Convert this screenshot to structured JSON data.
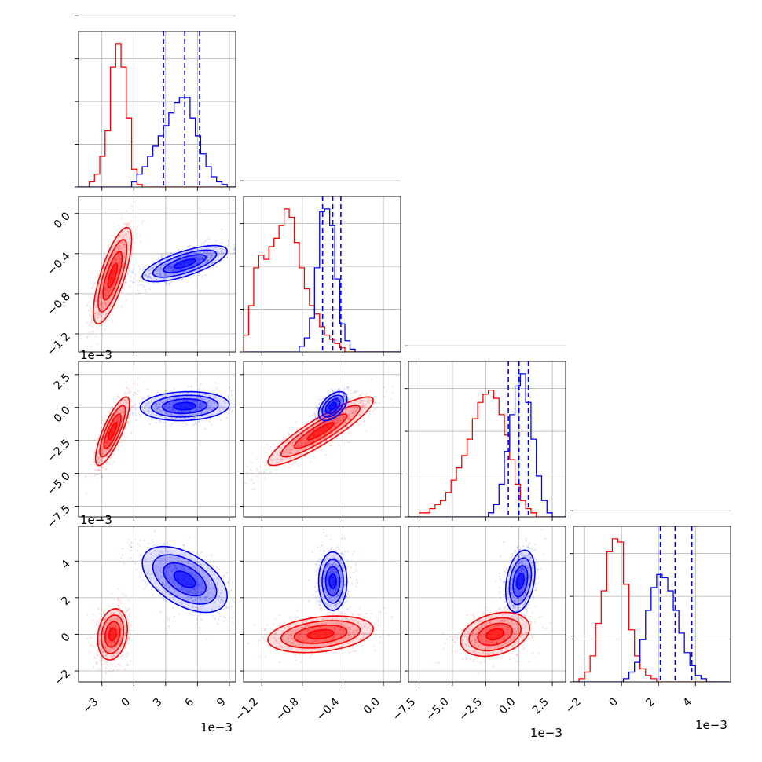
{
  "chart_data": {
    "type": "corner",
    "series_colors": {
      "red": "#ff0000",
      "blue": "#0000ff"
    },
    "grid": true,
    "parameters": [
      {
        "range": [
          -5.2,
          9.6
        ],
        "ticks": [
          -3,
          0,
          3,
          6,
          9
        ],
        "tick_labels": [
          "−3",
          "0",
          "3",
          "6",
          "9"
        ],
        "exponent_label": "1e−3"
      },
      {
        "range": [
          -1.38,
          0.17
        ],
        "ticks": [
          -1.2,
          -0.8,
          -0.4,
          0.0
        ],
        "tick_labels": [
          "−1.2",
          "−0.8",
          "−0.4",
          "0.0"
        ],
        "exponent_label": "1e−3"
      },
      {
        "range": [
          -8.3,
          3.5
        ],
        "ticks": [
          -7.5,
          -5.0,
          -2.5,
          0.0,
          2.5
        ],
        "tick_labels": [
          "−7.5",
          "−5.0",
          "−2.5",
          "0.0",
          "2.5"
        ],
        "exponent_label": "1e−3"
      },
      {
        "range": [
          -2.6,
          5.9
        ],
        "ticks": [
          -2,
          0,
          2,
          4
        ],
        "tick_labels": [
          "−2",
          "0",
          "2",
          "4"
        ],
        "exponent_label": "1e−3"
      }
    ],
    "marginals": [
      {
        "param": 0,
        "red_hist": {
          "start": -5.2,
          "bin_width": 0.5,
          "counts": [
            0,
            0,
            2,
            5,
            12,
            22,
            47,
            56,
            47,
            27,
            7,
            1,
            0,
            0,
            0,
            0,
            0,
            0,
            0,
            0,
            0,
            0,
            0,
            0,
            0,
            0,
            0,
            0,
            0,
            0
          ]
        },
        "blue_hist": {
          "start": -5.2,
          "bin_width": 0.5,
          "counts": [
            0,
            0,
            0,
            0,
            0,
            0,
            0,
            0,
            0,
            0,
            2,
            5,
            8,
            12,
            16,
            20,
            24,
            29,
            33,
            35,
            35,
            27,
            20,
            13,
            8,
            4,
            2,
            1,
            0,
            0
          ]
        },
        "blue_quantiles": [
          2.8,
          4.8,
          6.2
        ]
      },
      {
        "param": 1,
        "red_hist": {
          "start": -1.38,
          "bin_width": 0.05,
          "counts": [
            4,
            11,
            20,
            23,
            22,
            25,
            27,
            30,
            34,
            32,
            26,
            20,
            15,
            11,
            9,
            6,
            4,
            3,
            2,
            1,
            0,
            0,
            0,
            0,
            0,
            0,
            0,
            0,
            0,
            0,
            0,
            0
          ]
        },
        "blue_hist": {
          "start": -1.38,
          "bin_width": 0.05,
          "counts": [
            0,
            0,
            0,
            0,
            0,
            0,
            0,
            0,
            0,
            0,
            0,
            0,
            0,
            0,
            0,
            0,
            0,
            0,
            0,
            0,
            0,
            0,
            0,
            0,
            0,
            0,
            0,
            0,
            0,
            0,
            0,
            0
          ]
        },
        "blue_quantiles": [
          -0.6,
          -0.5,
          -0.42
        ]
      },
      {
        "param": 2,
        "red_hist": {
          "start": -8.3,
          "bin_width": 0.4,
          "counts": [
            0,
            0,
            1,
            1,
            2,
            3,
            4,
            6,
            9,
            12,
            15,
            19,
            24,
            28,
            30,
            31,
            29,
            25,
            20,
            14,
            8,
            4,
            2,
            1,
            0,
            0,
            0,
            0,
            0,
            0
          ]
        },
        "blue_hist": {
          "start": -8.3,
          "bin_width": 0.4,
          "counts": [
            0,
            0,
            0,
            0,
            0,
            0,
            0,
            0,
            0,
            0,
            0,
            0,
            0,
            0,
            0,
            1,
            3,
            8,
            16,
            25,
            32,
            35,
            28,
            19,
            10,
            4,
            1,
            0,
            0,
            0
          ]
        },
        "blue_quantiles": [
          -0.8,
          0.0,
          0.7
        ]
      },
      {
        "param": 3,
        "red_hist": {
          "start": -2.6,
          "bin_width": 0.3,
          "counts": [
            0,
            1,
            3,
            8,
            18,
            28,
            40,
            44,
            43,
            30,
            16,
            8,
            4,
            2,
            1,
            0,
            0,
            0,
            0,
            0,
            0,
            0,
            0,
            0,
            0,
            0,
            0,
            0
          ]
        },
        "blue_hist": {
          "start": -2.6,
          "bin_width": 0.3,
          "counts": [
            0,
            0,
            0,
            0,
            0,
            0,
            0,
            0,
            0,
            1,
            3,
            6,
            13,
            22,
            29,
            33,
            32,
            28,
            22,
            15,
            9,
            5,
            2,
            1,
            0,
            0,
            0,
            0
          ]
        },
        "blue_quantiles": [
          2.1,
          2.9,
          3.8
        ]
      }
    ],
    "joint": [
      {
        "x_param": 0,
        "y_param": 1,
        "red": {
          "mean": [
            -2.0,
            -0.62
          ],
          "sd": [
            0.9,
            0.24
          ],
          "rho": 0.75
        },
        "blue": {
          "mean": [
            4.8,
            -0.5
          ],
          "sd": [
            2.0,
            0.09
          ],
          "rho": 0.7
        }
      },
      {
        "x_param": 0,
        "y_param": 2,
        "red": {
          "mean": [
            -2.0,
            -1.8
          ],
          "sd": [
            0.8,
            1.3
          ],
          "rho": 0.8
        },
        "blue": {
          "mean": [
            4.8,
            0.1
          ],
          "sd": [
            2.1,
            0.55
          ],
          "rho": 0.1
        }
      },
      {
        "x_param": 1,
        "y_param": 2,
        "red": {
          "mean": [
            -0.62,
            -1.8
          ],
          "sd": [
            0.26,
            1.3
          ],
          "rho": 0.9
        },
        "blue": {
          "mean": [
            -0.5,
            0.1
          ],
          "sd": [
            0.07,
            0.55
          ],
          "rho": 0.5
        }
      },
      {
        "x_param": 0,
        "y_param": 3,
        "red": {
          "mean": [
            -2.0,
            0.0
          ],
          "sd": [
            0.7,
            0.7
          ],
          "rho": 0.2
        },
        "blue": {
          "mean": [
            4.8,
            3.0
          ],
          "sd": [
            2.0,
            0.9
          ],
          "rho": -0.5
        }
      },
      {
        "x_param": 1,
        "y_param": 3,
        "red": {
          "mean": [
            -0.62,
            0.0
          ],
          "sd": [
            0.26,
            0.5
          ],
          "rho": 0.3
        },
        "blue": {
          "mean": [
            -0.5,
            2.9
          ],
          "sd": [
            0.07,
            0.8
          ],
          "rho": 0.0
        }
      },
      {
        "x_param": 2,
        "y_param": 3,
        "red": {
          "mean": [
            -1.8,
            0.0
          ],
          "sd": [
            1.3,
            0.6
          ],
          "rho": 0.3
        },
        "blue": {
          "mean": [
            0.1,
            2.9
          ],
          "sd": [
            0.55,
            0.85
          ],
          "rho": 0.3
        }
      }
    ]
  }
}
